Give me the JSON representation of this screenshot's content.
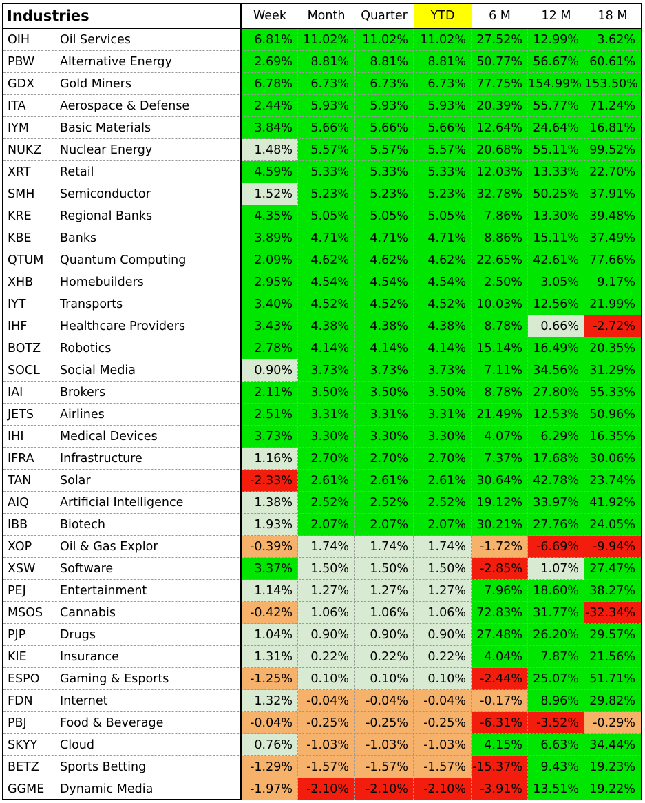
{
  "chart_data": {
    "type": "table",
    "title": "Industries",
    "columns": [
      "Week",
      "Month",
      "Quarter",
      "YTD",
      "6 M",
      "12 M",
      "18 M"
    ],
    "highlight_column": "YTD",
    "colors": {
      "strong_positive": "#00e600",
      "mild_positive": "#d9ead3",
      "mild_negative": "#f6b26b",
      "strong_negative": "#f21d0c",
      "header_highlight": "#ffff00"
    },
    "rows": [
      {
        "ticker": "OIH",
        "name": "Oil Services",
        "values": [
          "6.81%",
          "11.02%",
          "11.02%",
          "11.02%",
          "27.52%",
          "12.99%",
          "3.62%"
        ],
        "tone": [
          "G",
          "G",
          "G",
          "G",
          "G",
          "G",
          "G"
        ]
      },
      {
        "ticker": "PBW",
        "name": "Alternative Energy",
        "values": [
          "2.69%",
          "8.81%",
          "8.81%",
          "8.81%",
          "50.77%",
          "56.67%",
          "60.61%"
        ],
        "tone": [
          "G",
          "G",
          "G",
          "G",
          "G",
          "G",
          "G"
        ]
      },
      {
        "ticker": "GDX",
        "name": "Gold Miners",
        "values": [
          "6.78%",
          "6.73%",
          "6.73%",
          "6.73%",
          "77.75%",
          "154.99%",
          "153.50%"
        ],
        "tone": [
          "G",
          "G",
          "G",
          "G",
          "G",
          "G",
          "G"
        ]
      },
      {
        "ticker": "ITA",
        "name": "Aerospace & Defense",
        "values": [
          "2.44%",
          "5.93%",
          "5.93%",
          "5.93%",
          "20.39%",
          "55.77%",
          "71.24%"
        ],
        "tone": [
          "G",
          "G",
          "G",
          "G",
          "G",
          "G",
          "G"
        ]
      },
      {
        "ticker": "IYM",
        "name": "Basic Materials",
        "values": [
          "3.84%",
          "5.66%",
          "5.66%",
          "5.66%",
          "12.64%",
          "24.64%",
          "16.81%"
        ],
        "tone": [
          "G",
          "G",
          "G",
          "G",
          "G",
          "G",
          "G"
        ]
      },
      {
        "ticker": "NUKZ",
        "name": "Nuclear Energy",
        "values": [
          "1.48%",
          "5.57%",
          "5.57%",
          "5.57%",
          "20.68%",
          "55.11%",
          "99.52%"
        ],
        "tone": [
          "L",
          "G",
          "G",
          "G",
          "G",
          "G",
          "G"
        ]
      },
      {
        "ticker": "XRT",
        "name": "Retail",
        "values": [
          "4.59%",
          "5.33%",
          "5.33%",
          "5.33%",
          "12.03%",
          "13.33%",
          "22.70%"
        ],
        "tone": [
          "G",
          "G",
          "G",
          "G",
          "G",
          "G",
          "G"
        ]
      },
      {
        "ticker": "SMH",
        "name": "Semiconductor",
        "values": [
          "1.52%",
          "5.23%",
          "5.23%",
          "5.23%",
          "32.78%",
          "50.25%",
          "37.91%"
        ],
        "tone": [
          "L",
          "G",
          "G",
          "G",
          "G",
          "G",
          "G"
        ]
      },
      {
        "ticker": "KRE",
        "name": "Regional Banks",
        "values": [
          "4.35%",
          "5.05%",
          "5.05%",
          "5.05%",
          "7.86%",
          "13.30%",
          "39.48%"
        ],
        "tone": [
          "G",
          "G",
          "G",
          "G",
          "G",
          "G",
          "G"
        ]
      },
      {
        "ticker": "KBE",
        "name": "Banks",
        "values": [
          "3.89%",
          "4.71%",
          "4.71%",
          "4.71%",
          "8.86%",
          "15.11%",
          "37.49%"
        ],
        "tone": [
          "G",
          "G",
          "G",
          "G",
          "G",
          "G",
          "G"
        ]
      },
      {
        "ticker": "QTUM",
        "name": "Quantum Computing",
        "values": [
          "2.09%",
          "4.62%",
          "4.62%",
          "4.62%",
          "22.65%",
          "42.61%",
          "77.66%"
        ],
        "tone": [
          "G",
          "G",
          "G",
          "G",
          "G",
          "G",
          "G"
        ]
      },
      {
        "ticker": "XHB",
        "name": "Homebuilders",
        "values": [
          "2.95%",
          "4.54%",
          "4.54%",
          "4.54%",
          "2.50%",
          "3.05%",
          "9.17%"
        ],
        "tone": [
          "G",
          "G",
          "G",
          "G",
          "G",
          "G",
          "G"
        ]
      },
      {
        "ticker": "IYT",
        "name": "Transports",
        "values": [
          "3.40%",
          "4.52%",
          "4.52%",
          "4.52%",
          "10.03%",
          "12.56%",
          "21.99%"
        ],
        "tone": [
          "G",
          "G",
          "G",
          "G",
          "G",
          "G",
          "G"
        ]
      },
      {
        "ticker": "IHF",
        "name": "Healthcare Providers",
        "values": [
          "3.43%",
          "4.38%",
          "4.38%",
          "4.38%",
          "8.78%",
          "0.66%",
          "-2.72%"
        ],
        "tone": [
          "G",
          "G",
          "G",
          "G",
          "G",
          "L",
          "R"
        ]
      },
      {
        "ticker": "BOTZ",
        "name": "Robotics",
        "values": [
          "2.78%",
          "4.14%",
          "4.14%",
          "4.14%",
          "15.14%",
          "16.49%",
          "20.35%"
        ],
        "tone": [
          "G",
          "G",
          "G",
          "G",
          "G",
          "G",
          "G"
        ]
      },
      {
        "ticker": "SOCL",
        "name": "Social Media",
        "values": [
          "0.90%",
          "3.73%",
          "3.73%",
          "3.73%",
          "7.11%",
          "34.56%",
          "31.29%"
        ],
        "tone": [
          "L",
          "G",
          "G",
          "G",
          "G",
          "G",
          "G"
        ]
      },
      {
        "ticker": "IAI",
        "name": "Brokers",
        "values": [
          "2.11%",
          "3.50%",
          "3.50%",
          "3.50%",
          "8.78%",
          "27.80%",
          "55.33%"
        ],
        "tone": [
          "G",
          "G",
          "G",
          "G",
          "G",
          "G",
          "G"
        ]
      },
      {
        "ticker": "JETS",
        "name": "Airlines",
        "values": [
          "2.51%",
          "3.31%",
          "3.31%",
          "3.31%",
          "21.49%",
          "12.53%",
          "50.96%"
        ],
        "tone": [
          "G",
          "G",
          "G",
          "G",
          "G",
          "G",
          "G"
        ]
      },
      {
        "ticker": "IHI",
        "name": "Medical Devices",
        "values": [
          "3.73%",
          "3.30%",
          "3.30%",
          "3.30%",
          "4.07%",
          "6.29%",
          "16.35%"
        ],
        "tone": [
          "G",
          "G",
          "G",
          "G",
          "G",
          "G",
          "G"
        ]
      },
      {
        "ticker": "IFRA",
        "name": "Infrastructure",
        "values": [
          "1.16%",
          "2.70%",
          "2.70%",
          "2.70%",
          "7.37%",
          "17.68%",
          "30.06%"
        ],
        "tone": [
          "L",
          "G",
          "G",
          "G",
          "G",
          "G",
          "G"
        ]
      },
      {
        "ticker": "TAN",
        "name": "Solar",
        "values": [
          "-2.33%",
          "2.61%",
          "2.61%",
          "2.61%",
          "30.64%",
          "42.78%",
          "23.74%"
        ],
        "tone": [
          "R",
          "G",
          "G",
          "G",
          "G",
          "G",
          "G"
        ]
      },
      {
        "ticker": "AIQ",
        "name": "Artificial Intelligence",
        "values": [
          "1.38%",
          "2.52%",
          "2.52%",
          "2.52%",
          "19.12%",
          "33.97%",
          "41.92%"
        ],
        "tone": [
          "L",
          "G",
          "G",
          "G",
          "G",
          "G",
          "G"
        ]
      },
      {
        "ticker": "IBB",
        "name": "Biotech",
        "values": [
          "1.93%",
          "2.07%",
          "2.07%",
          "2.07%",
          "30.21%",
          "27.76%",
          "24.05%"
        ],
        "tone": [
          "L",
          "G",
          "G",
          "G",
          "G",
          "G",
          "G"
        ]
      },
      {
        "ticker": "XOP",
        "name": "Oil & Gas Explor",
        "values": [
          "-0.39%",
          "1.74%",
          "1.74%",
          "1.74%",
          "-1.72%",
          "-6.69%",
          "-9.94%"
        ],
        "tone": [
          "O",
          "L",
          "L",
          "L",
          "O",
          "R",
          "R"
        ]
      },
      {
        "ticker": "XSW",
        "name": "Software",
        "values": [
          "3.37%",
          "1.50%",
          "1.50%",
          "1.50%",
          "-2.85%",
          "1.07%",
          "27.47%"
        ],
        "tone": [
          "G",
          "L",
          "L",
          "L",
          "R",
          "L",
          "G"
        ]
      },
      {
        "ticker": "PEJ",
        "name": "Entertainment",
        "values": [
          "1.14%",
          "1.27%",
          "1.27%",
          "1.27%",
          "7.96%",
          "18.60%",
          "38.27%"
        ],
        "tone": [
          "L",
          "L",
          "L",
          "L",
          "G",
          "G",
          "G"
        ]
      },
      {
        "ticker": "MSOS",
        "name": "Cannabis",
        "values": [
          "-0.42%",
          "1.06%",
          "1.06%",
          "1.06%",
          "72.83%",
          "31.77%",
          "-32.34%"
        ],
        "tone": [
          "O",
          "L",
          "L",
          "L",
          "G",
          "G",
          "R"
        ]
      },
      {
        "ticker": "PJP",
        "name": "Drugs",
        "values": [
          "1.04%",
          "0.90%",
          "0.90%",
          "0.90%",
          "27.48%",
          "26.20%",
          "29.57%"
        ],
        "tone": [
          "L",
          "L",
          "L",
          "L",
          "G",
          "G",
          "G"
        ]
      },
      {
        "ticker": "KIE",
        "name": "Insurance",
        "values": [
          "1.31%",
          "0.22%",
          "0.22%",
          "0.22%",
          "4.04%",
          "7.87%",
          "21.56%"
        ],
        "tone": [
          "L",
          "L",
          "L",
          "L",
          "G",
          "G",
          "G"
        ]
      },
      {
        "ticker": "ESPO",
        "name": "Gaming & Esports",
        "values": [
          "-1.25%",
          "0.10%",
          "0.10%",
          "0.10%",
          "-2.44%",
          "25.07%",
          "51.71%"
        ],
        "tone": [
          "O",
          "L",
          "L",
          "L",
          "R",
          "G",
          "G"
        ]
      },
      {
        "ticker": "FDN",
        "name": "Internet",
        "values": [
          "1.32%",
          "-0.04%",
          "-0.04%",
          "-0.04%",
          "-0.17%",
          "8.96%",
          "29.82%"
        ],
        "tone": [
          "L",
          "O",
          "O",
          "O",
          "O",
          "G",
          "G"
        ]
      },
      {
        "ticker": "PBJ",
        "name": "Food & Beverage",
        "values": [
          "-0.04%",
          "-0.25%",
          "-0.25%",
          "-0.25%",
          "-6.31%",
          "-3.52%",
          "-0.29%"
        ],
        "tone": [
          "O",
          "O",
          "O",
          "O",
          "R",
          "R",
          "O"
        ]
      },
      {
        "ticker": "SKYY",
        "name": "Cloud",
        "values": [
          "0.76%",
          "-1.03%",
          "-1.03%",
          "-1.03%",
          "4.15%",
          "6.63%",
          "34.44%"
        ],
        "tone": [
          "L",
          "O",
          "O",
          "O",
          "G",
          "G",
          "G"
        ]
      },
      {
        "ticker": "BETZ",
        "name": "Sports Betting",
        "values": [
          "-1.29%",
          "-1.57%",
          "-1.57%",
          "-1.57%",
          "-15.37%",
          "9.43%",
          "19.23%"
        ],
        "tone": [
          "O",
          "O",
          "O",
          "O",
          "R",
          "G",
          "G"
        ]
      },
      {
        "ticker": "GGME",
        "name": "Dynamic Media",
        "values": [
          "-1.97%",
          "-2.10%",
          "-2.10%",
          "-2.10%",
          "-3.91%",
          "13.51%",
          "19.22%"
        ],
        "tone": [
          "O",
          "R",
          "R",
          "R",
          "R",
          "G",
          "G"
        ]
      }
    ]
  }
}
